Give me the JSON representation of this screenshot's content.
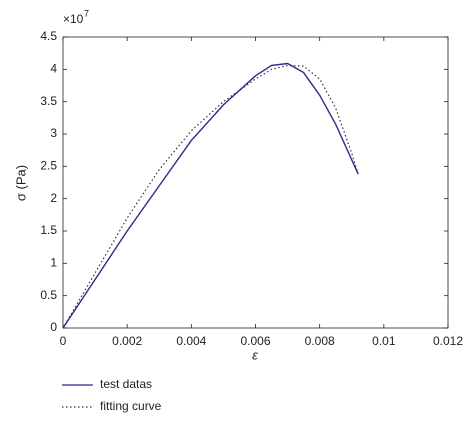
{
  "chart_data": {
    "type": "line",
    "axis_multiplier": {
      "base": "×10",
      "exponent": "7"
    },
    "xlabel": "ε",
    "ylabel": "σ (Pa)",
    "x": [
      0,
      0.001,
      0.002,
      0.003,
      0.004,
      0.005,
      0.006,
      0.0065,
      0.007,
      0.0075,
      0.008,
      0.0085,
      0.009,
      0.0092
    ],
    "series": [
      {
        "name": "test datas",
        "color": "#2b2b8c",
        "style": "solid",
        "values": [
          0,
          0.75,
          1.5,
          2.2,
          2.9,
          3.45,
          3.9,
          4.06,
          4.09,
          3.95,
          3.6,
          3.15,
          2.6,
          2.38
        ]
      },
      {
        "name": "fitting curve",
        "color": "#333333",
        "style": "dotted",
        "values": [
          0,
          0.85,
          1.7,
          2.45,
          3.05,
          3.5,
          3.85,
          4.0,
          4.06,
          4.05,
          3.85,
          3.4,
          2.7,
          2.38
        ]
      }
    ],
    "xlim": [
      0,
      0.012
    ],
    "xticks": [
      0,
      0.002,
      0.004,
      0.006,
      0.008,
      0.01,
      0.012
    ],
    "ylim": [
      0,
      4.5
    ],
    "yticks": [
      0,
      0.5,
      1,
      1.5,
      2,
      2.5,
      3,
      3.5,
      4,
      4.5
    ],
    "legend": "below-left"
  }
}
